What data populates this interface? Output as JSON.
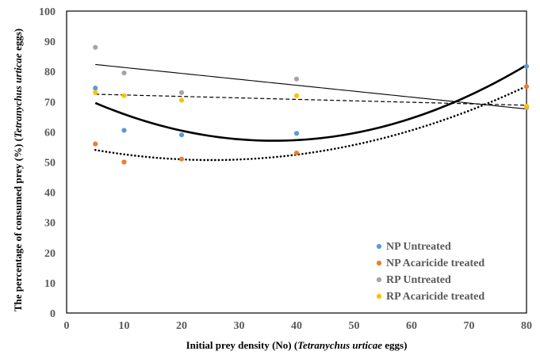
{
  "chart_data": {
    "type": "scatter",
    "title": "",
    "xlabel_parts": [
      {
        "text": "Initial prey density (No) (",
        "italic": false
      },
      {
        "text": "Tetranychus urticae",
        "italic": true
      },
      {
        "text": " eggs)",
        "italic": false
      }
    ],
    "ylabel_parts": [
      {
        "text": "The percentage of consumed prey (%) (",
        "italic": false
      },
      {
        "text": "Tetranychus urticae",
        "italic": true
      },
      {
        "text": " eggs)",
        "italic": false
      }
    ],
    "xlim": [
      0,
      80
    ],
    "ylim": [
      0,
      100
    ],
    "xticks": [
      0,
      10,
      20,
      30,
      40,
      50,
      60,
      70,
      80
    ],
    "yticks": [
      0,
      10,
      20,
      30,
      40,
      50,
      60,
      70,
      80,
      90,
      100
    ],
    "grid": false,
    "legend_position": "bottom-right",
    "series": [
      {
        "name": "NP Untreated",
        "color": "#5B9BD5",
        "x": [
          5,
          10,
          20,
          40,
          80
        ],
        "y": [
          74.5,
          60.5,
          59,
          59.5,
          81.7
        ],
        "trendline": {
          "kind": "quadratic",
          "style": "solid-thick"
        }
      },
      {
        "name": "NP Acaricide treated",
        "color": "#ED7D31",
        "x": [
          5,
          10,
          20,
          40,
          80
        ],
        "y": [
          56,
          50,
          51,
          53,
          75
        ],
        "trendline": {
          "kind": "quadratic",
          "style": "dotted"
        }
      },
      {
        "name": "RP Untreated",
        "color": "#A5A5A5",
        "x": [
          5,
          10,
          20,
          40,
          80
        ],
        "y": [
          88,
          79.5,
          73,
          77.5,
          68
        ],
        "trendline": {
          "kind": "linear",
          "style": "solid-thin"
        }
      },
      {
        "name": "RP Acaricide treated",
        "color": "#FFC000",
        "x": [
          5,
          10,
          20,
          40,
          80
        ],
        "y": [
          73,
          72,
          70.5,
          72,
          68.5
        ],
        "trendline": {
          "kind": "linear",
          "style": "dashed"
        }
      }
    ]
  }
}
